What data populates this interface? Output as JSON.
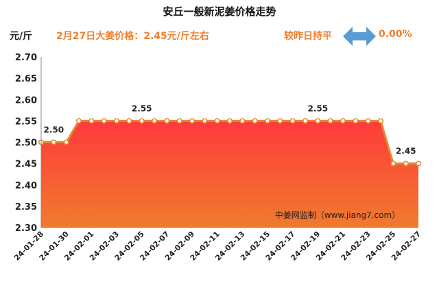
{
  "header": {
    "title": "安丘一般新泥姜价格走势",
    "y_unit": "元/斤",
    "price_note": "2月27日大姜价格：2.45元/斤左右",
    "compare_text": "较昨日持平",
    "change_pct": "0.00%"
  },
  "watermark": "中姜网监制（www.jiang7.com）",
  "colors": {
    "accent": "#ee7f2d",
    "line": "#e8892f",
    "fill_top": "#ff3b3b",
    "fill_bottom": "#f07a2e",
    "arrow": "#5b9bd5"
  },
  "chart_data": {
    "type": "area",
    "title": "安丘一般新泥姜价格走势",
    "ylabel": "元/斤",
    "xlabel": "",
    "ylim": [
      2.3,
      2.7
    ],
    "yticks": [
      "2.70",
      "2.65",
      "2.60",
      "2.55",
      "2.50",
      "2.45",
      "2.40",
      "2.35",
      "2.30"
    ],
    "grid": false,
    "x": [
      "24-01-28",
      "24-01-29",
      "24-01-30",
      "24-01-31",
      "24-02-01",
      "24-02-02",
      "24-02-03",
      "24-02-04",
      "24-02-05",
      "24-02-06",
      "24-02-07",
      "24-02-08",
      "24-02-09",
      "24-02-10",
      "24-02-11",
      "24-02-12",
      "24-02-13",
      "24-02-14",
      "24-02-15",
      "24-02-16",
      "24-02-17",
      "24-02-18",
      "24-02-19",
      "24-02-20",
      "24-02-21",
      "24-02-22",
      "24-02-23",
      "24-02-24",
      "24-02-25",
      "24-02-26",
      "24-02-27"
    ],
    "xtick_labels": [
      "24-01-28",
      "24-01-30",
      "24-02-01",
      "24-02-03",
      "24-02-05",
      "24-02-07",
      "24-02-09",
      "24-02-11",
      "24-02-13",
      "24-02-15",
      "24-02-17",
      "24-02-19",
      "24-02-21",
      "24-02-23",
      "24-02-25",
      "24-02-27"
    ],
    "values": [
      2.5,
      2.5,
      2.5,
      2.55,
      2.55,
      2.55,
      2.55,
      2.55,
      2.55,
      2.55,
      2.55,
      2.55,
      2.55,
      2.55,
      2.55,
      2.55,
      2.55,
      2.55,
      2.55,
      2.55,
      2.55,
      2.55,
      2.55,
      2.55,
      2.55,
      2.55,
      2.55,
      2.55,
      2.45,
      2.45,
      2.45
    ],
    "annotations": [
      {
        "x": "24-01-29",
        "text": "2.50"
      },
      {
        "x": "24-02-05",
        "text": "2.55"
      },
      {
        "x": "24-02-19",
        "text": "2.55"
      },
      {
        "x": "24-02-26",
        "text": "2.45"
      }
    ]
  }
}
